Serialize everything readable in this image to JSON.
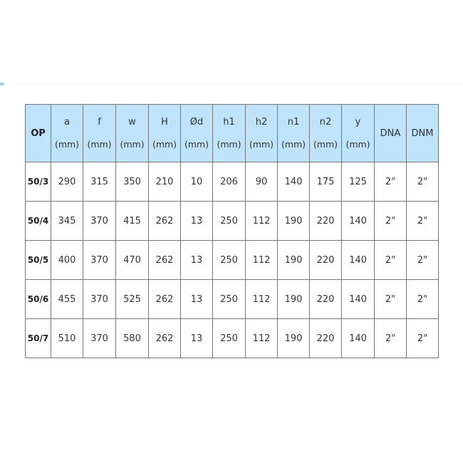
{
  "header": {
    "first": "OP",
    "columns": [
      {
        "label": "a",
        "unit": "(mm)"
      },
      {
        "label": "f",
        "unit": "(mm)"
      },
      {
        "label": "w",
        "unit": "(mm)"
      },
      {
        "label": "H",
        "unit": "(mm)"
      },
      {
        "label": "Ød",
        "unit": "(mm)"
      },
      {
        "label": "h1",
        "unit": "(mm)"
      },
      {
        "label": "h2",
        "unit": "(mm)"
      },
      {
        "label": "n1",
        "unit": "(mm)"
      },
      {
        "label": "n2",
        "unit": "(mm)"
      },
      {
        "label": "y",
        "unit": "(mm)"
      },
      {
        "label": "DNA",
        "unit": ""
      },
      {
        "label": "DNM",
        "unit": ""
      }
    ]
  },
  "rows": [
    [
      "50/3",
      "290",
      "315",
      "350",
      "210",
      "10",
      "206",
      "90",
      "140",
      "175",
      "125",
      "2\"",
      "2\""
    ],
    [
      "50/4",
      "345",
      "370",
      "415",
      "262",
      "13",
      "250",
      "112",
      "190",
      "220",
      "140",
      "2\"",
      "2\""
    ],
    [
      "50/5",
      "400",
      "370",
      "470",
      "262",
      "13",
      "250",
      "112",
      "190",
      "220",
      "140",
      "2\"",
      "2\""
    ],
    [
      "50/6",
      "455",
      "370",
      "525",
      "262",
      "13",
      "250",
      "112",
      "190",
      "220",
      "140",
      "2\"",
      "2\""
    ],
    [
      "50/7",
      "510",
      "370",
      "580",
      "262",
      "13",
      "250",
      "112",
      "190",
      "220",
      "140",
      "2\"",
      "2\""
    ]
  ]
}
